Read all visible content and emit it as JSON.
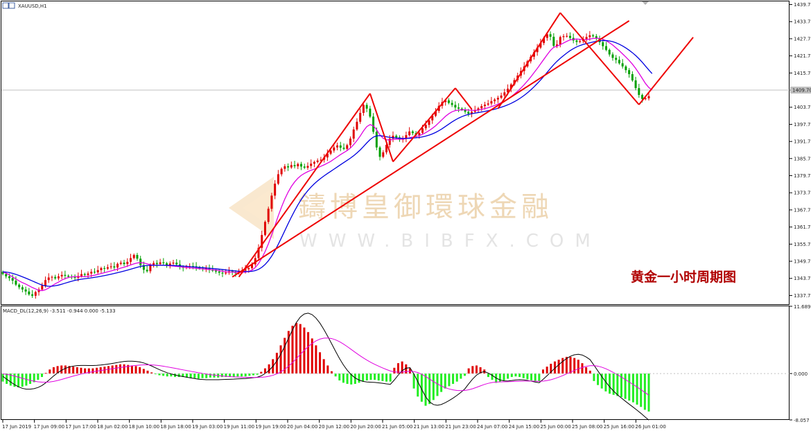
{
  "window": {
    "symbol_label": "XAUUSD,H1"
  },
  "annotation": {
    "title": "黄金一小时周期图",
    "color": "#b00000"
  },
  "watermark": {
    "text": "鑄博皇御環球金融",
    "url": "WWW.BIBFX.COM"
  },
  "macd_panel": {
    "label": "MACD_DL(12,26,9) -3.511 -0.944 0.000 -5.133"
  },
  "chart_data": [
    {
      "type": "candlestick",
      "symbol": "XAUUSD",
      "timeframe": "H1",
      "price_axis": {
        "ticks": [
          1439.7,
          1433.7,
          1427.7,
          1421.7,
          1415.7,
          1409.7,
          1403.7,
          1397.7,
          1391.7,
          1385.7,
          1379.7,
          1373.7,
          1367.7,
          1361.7,
          1355.7,
          1349.7,
          1343.7,
          1337.7
        ],
        "ylim": [
          1334.4,
          1440.8
        ],
        "current_price_label": "1409.70"
      },
      "time_axis": {
        "ticks": [
          "17 Jun 2019",
          "17 Jun 09:00",
          "17 Jun 17:00",
          "18 Jun 02:00",
          "18 Jun 10:00",
          "18 Jun 18:00",
          "19 Jun 03:00",
          "19 Jun 11:00",
          "19 Jun 19:00",
          "20 Jun 04:00",
          "20 Jun 12:00",
          "20 Jun 20:00",
          "21 Jun 05:00",
          "21 Jun 13:00",
          "21 Jun 23:00",
          "24 Jun 07:00",
          "24 Jun 15:00",
          "25 Jun 00:00",
          "25 Jun 08:00",
          "25 Jun 16:00",
          "26 Jun 01:00"
        ]
      },
      "colors": {
        "up": "#e00000",
        "down": "#00a000",
        "ma_fast": "#e000e0",
        "ma_slow": "#0000e0",
        "trendline": "#ee0000"
      },
      "close": [
        1345.2,
        1344.4,
        1343.8,
        1342.9,
        1341.5,
        1340.6,
        1339.8,
        1339.1,
        1338.1,
        1337.6,
        1338.9,
        1339.8,
        1341.2,
        1343.1,
        1344.0,
        1344.2,
        1343.7,
        1344.4,
        1344.9,
        1344.6,
        1344.3,
        1344.1,
        1343.9,
        1344.5,
        1345.2,
        1344.9,
        1345.4,
        1346.0,
        1345.8,
        1346.6,
        1347.3,
        1347.1,
        1347.6,
        1347.9,
        1347.5,
        1348.8,
        1349.2,
        1348.7,
        1349.5,
        1350.8,
        1351.9,
        1350.6,
        1348.3,
        1346.7,
        1346.2,
        1348.5,
        1349.1,
        1348.7,
        1349.3,
        1349.0,
        1348.4,
        1348.9,
        1349.2,
        1348.6,
        1347.8,
        1347.4,
        1347.7,
        1348.0,
        1347.9,
        1347.6,
        1347.2,
        1346.9,
        1347.3,
        1346.8,
        1346.4,
        1346.1,
        1345.7,
        1345.4,
        1345.7,
        1346.2,
        1345.8,
        1345.5,
        1346.1,
        1346.4,
        1346.9,
        1347.3,
        1348.6,
        1350.8,
        1354.4,
        1358.9,
        1363.5,
        1368.1,
        1372.7,
        1376.9,
        1380.2,
        1382.1,
        1383.0,
        1382.6,
        1383.4,
        1383.0,
        1383.8,
        1382.9,
        1382.5,
        1383.1,
        1383.9,
        1384.5,
        1385.0,
        1385.3,
        1386.1,
        1387.4,
        1388.5,
        1389.6,
        1390.3,
        1389.5,
        1389.1,
        1390.4,
        1392.7,
        1395.9,
        1398.6,
        1401.7,
        1404.5,
        1403.2,
        1400.4,
        1395.1,
        1389.6,
        1386.3,
        1387.9,
        1390.5,
        1392.7,
        1393.7,
        1393.1,
        1392.3,
        1392.7,
        1393.9,
        1395.2,
        1394.6,
        1393.9,
        1394.7,
        1396.3,
        1397.5,
        1399.1,
        1400.7,
        1402.4,
        1404.2,
        1405.5,
        1406.1,
        1405.2,
        1404.5,
        1403.6,
        1403.2,
        1402.9,
        1402.1,
        1401.4,
        1402.1,
        1402.7,
        1403.3,
        1404.1,
        1404.6,
        1405.0,
        1405.8,
        1406.4,
        1407.0,
        1407.8,
        1408.9,
        1410.2,
        1411.7,
        1413.2,
        1414.8,
        1416.4,
        1418.0,
        1419.8,
        1421.4,
        1423.0,
        1424.6,
        1426.2,
        1428.0,
        1429.3,
        1428.4,
        1425.2,
        1425.7,
        1428.3,
        1428.6,
        1428.7,
        1428.0,
        1427.1,
        1426.6,
        1426.9,
        1427.6,
        1428.3,
        1428.9,
        1428.6,
        1427.8,
        1426.5,
        1425.1,
        1423.8,
        1422.2,
        1421.0,
        1420.3,
        1419.1,
        1418.0,
        1416.7,
        1415.3,
        1413.1,
        1410.4,
        1408.0,
        1406.6,
        1406.8,
        1407.6
      ],
      "ma_fast": [
        1346.0,
        1345.5,
        1344.9,
        1344.2,
        1343.5,
        1342.8,
        1342.2,
        1341.7,
        1341.1,
        1340.5,
        1340.0,
        1339.5,
        1339.4,
        1339.7,
        1340.3,
        1341.1,
        1341.8,
        1342.4,
        1343.1,
        1343.6,
        1344.0,
        1344.2,
        1344.3,
        1344.3,
        1344.3,
        1344.3,
        1344.4,
        1344.6,
        1344.8,
        1345.1,
        1345.4,
        1345.7,
        1346.0,
        1346.3,
        1346.6,
        1346.9,
        1347.3,
        1347.6,
        1348.0,
        1348.4,
        1348.8,
        1349.1,
        1349.2,
        1349.1,
        1348.8,
        1348.5,
        1348.3,
        1348.3,
        1348.3,
        1348.3,
        1348.2,
        1348.1,
        1348.0,
        1347.9,
        1347.8,
        1347.6,
        1347.5,
        1347.4,
        1347.3,
        1347.2,
        1347.1,
        1347.0,
        1346.9,
        1346.8,
        1346.7,
        1346.6,
        1346.4,
        1346.2,
        1346.0,
        1345.9,
        1345.9,
        1345.8,
        1345.8,
        1345.8,
        1345.9,
        1346.1,
        1346.6,
        1347.5,
        1348.9,
        1350.8,
        1353.1,
        1355.8,
        1358.9,
        1362.2,
        1365.6,
        1368.7,
        1371.5,
        1373.9,
        1375.9,
        1377.5,
        1378.8,
        1379.8,
        1380.5,
        1381.1,
        1381.6,
        1382.0,
        1382.5,
        1383.0,
        1383.5,
        1384.1,
        1384.7,
        1385.5,
        1386.3,
        1387.1,
        1387.8,
        1388.5,
        1389.4,
        1390.6,
        1392.0,
        1393.6,
        1395.4,
        1396.9,
        1397.6,
        1397.2,
        1395.8,
        1394.0,
        1392.8,
        1392.3,
        1392.2,
        1392.4,
        1392.5,
        1392.5,
        1392.5,
        1392.7,
        1393.0,
        1393.2,
        1393.4,
        1393.7,
        1394.2,
        1394.8,
        1395.5,
        1396.3,
        1397.2,
        1398.3,
        1399.4,
        1400.5,
        1401.4,
        1402.1,
        1402.5,
        1402.7,
        1402.8,
        1402.8,
        1402.7,
        1402.6,
        1402.6,
        1402.7,
        1402.9,
        1403.2,
        1403.5,
        1403.9,
        1404.3,
        1404.8,
        1405.3,
        1405.9,
        1406.6,
        1407.4,
        1408.3,
        1409.3,
        1410.4,
        1411.6,
        1412.9,
        1414.3,
        1415.8,
        1417.3,
        1418.9,
        1420.5,
        1422.1,
        1423.6,
        1424.7,
        1425.1,
        1425.6,
        1426.2,
        1426.8,
        1427.3,
        1427.5,
        1427.6,
        1427.5,
        1427.4,
        1427.4,
        1427.6,
        1427.8,
        1427.9,
        1427.8,
        1427.5,
        1427.0,
        1426.3,
        1425.5,
        1424.5,
        1423.5,
        1422.4,
        1421.3,
        1420.1,
        1418.8,
        1417.3,
        1415.6,
        1413.8,
        1412.0,
        1410.6,
        1409.7
      ]
    },
    {
      "type": "histogram",
      "name": "MACD",
      "label": "MACD_DL(12,26,9) -3.511 -0.944 0.000 -5.133",
      "y_ticks": [
        11.689,
        0.0,
        -8.057
      ],
      "ylim": [
        -8.057,
        11.689
      ],
      "colors": {
        "positive": "#e00000",
        "negative": "#22ee22",
        "line_dif": "#000000",
        "line_dea": "#e000e0"
      },
      "histogram": [
        -1.4,
        -1.8,
        -2.1,
        -2.3,
        -2.4,
        -2.3,
        -2.1,
        -1.8,
        -1.5,
        -1.1,
        -0.6,
        0.1,
        0.7,
        1.1,
        1.3,
        1.4,
        1.4,
        1.3,
        1.2,
        1.1,
        1.0,
        0.9,
        0.9,
        0.9,
        1.0,
        1.1,
        1.2,
        1.3,
        1.4,
        1.5,
        1.6,
        1.6,
        1.5,
        1.4,
        1.3,
        1.1,
        0.8,
        0.5,
        0.2,
        -0.1,
        -0.3,
        -0.4,
        -0.5,
        -0.5,
        -0.6,
        -0.6,
        -0.6,
        -0.7,
        -0.8,
        -0.8,
        -0.9,
        -0.8,
        -0.8,
        -0.7,
        -0.7,
        -0.7,
        -0.6,
        -0.6,
        -0.6,
        -0.6,
        -0.5,
        -0.5,
        -0.5,
        -0.4,
        -0.3,
        -0.2,
        0.3,
        0.9,
        1.6,
        2.5,
        3.6,
        4.9,
        6.2,
        7.4,
        8.3,
        8.8,
        8.6,
        8.0,
        7.2,
        6.1,
        4.9,
        3.7,
        2.5,
        1.4,
        0.4,
        -0.5,
        -1.2,
        -1.6,
        -1.8,
        -1.9,
        -1.8,
        -1.6,
        -1.4,
        -1.2,
        -1.1,
        -1.1,
        -1.2,
        -1.3,
        -1.4,
        -1.4,
        1.0,
        1.8,
        2.1,
        1.6,
        0.9,
        -2.6,
        -4.0,
        -4.9,
        -5.6,
        -5.3,
        -4.6,
        -3.9,
        -3.2,
        -2.6,
        -2.2,
        -1.8,
        -1.4,
        -0.9,
        -0.4,
        0.9,
        1.3,
        1.4,
        1.1,
        0.7,
        -0.6,
        -1.1,
        -1.6,
        -1.5,
        -1.2,
        -0.9,
        -0.6,
        -0.5,
        -0.6,
        -0.8,
        -1.0,
        -1.2,
        -1.3,
        -1.3,
        0.7,
        1.2,
        1.7,
        2.1,
        2.4,
        2.7,
        2.9,
        2.9,
        2.7,
        2.4,
        1.8,
        1.1,
        0.5,
        -1.3,
        -2.0,
        -2.6,
        -3.1,
        -3.5,
        -3.7,
        -3.9,
        -4.1,
        -4.4,
        -4.7,
        -5.0,
        -5.4,
        -5.8,
        -6.3,
        -6.6
      ]
    }
  ]
}
